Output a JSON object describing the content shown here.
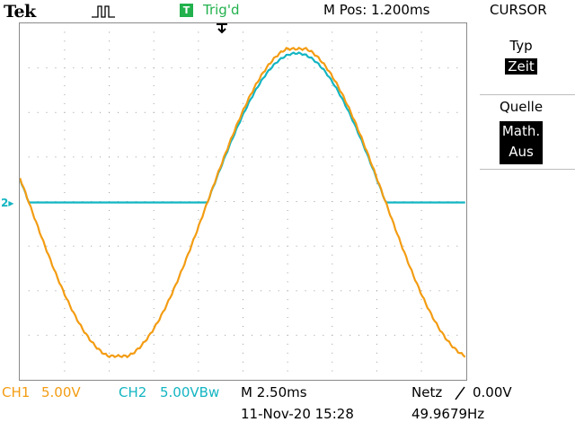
{
  "header": {
    "brand": "Tek",
    "acquisition_icon": "run-pulse-icon",
    "trigger_badge": "T",
    "trigger_status": "Trig'd",
    "horizontal_position": "M Pos: 1.200ms",
    "menu_title": "CURSOR"
  },
  "side_menu": {
    "type_label": "Typ",
    "type_value": "Zeit",
    "source_label": "Quelle",
    "source_value_line1": "Math.",
    "source_value_line2": "Aus"
  },
  "footer": {
    "ch1_label": "CH1",
    "ch1_scale": "5.00V",
    "ch2_label": "CH2",
    "ch2_scale": "5.00VBw",
    "timebase": "M 2.50ms",
    "datetime": "11-Nov-20 15:28",
    "trigger_source": "Netz",
    "trigger_slope_icon": "rising-edge-icon",
    "trigger_level": "0.00V",
    "frequency": "49.9679Hz"
  },
  "channel_markers": {
    "ch2_ground": "2"
  },
  "colors": {
    "ch1": "#f39c12",
    "ch2": "#13b5c2",
    "trigger": "#22b14c",
    "grid": "#9a9a9a"
  },
  "waveforms": {
    "divisions": {
      "horizontal": 10,
      "vertical": 8
    },
    "ch1": {
      "shape": "sine",
      "amplitude_div": 3.5,
      "period_div": 8.0,
      "zero_cross_div": 4.2
    },
    "ch2": {
      "shape": "half-wave rectified sine",
      "amplitude_div": 3.35
    }
  }
}
